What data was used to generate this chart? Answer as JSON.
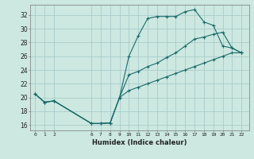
{
  "xlabel": "Humidex (Indice chaleur)",
  "bg_color": "#cce8e0",
  "grid_color": "#aacccc",
  "line_color": "#1a6b6b",
  "series": [
    {
      "x": [
        0,
        1,
        2,
        6,
        7,
        8,
        9,
        10,
        11,
        12,
        13,
        14,
        15,
        16,
        17,
        18,
        19,
        20,
        21,
        22
      ],
      "y": [
        20.5,
        19.3,
        19.5,
        16.2,
        16.2,
        16.3,
        20.0,
        26.0,
        29.0,
        31.5,
        31.8,
        31.8,
        31.8,
        32.5,
        32.8,
        31.0,
        30.5,
        27.5,
        27.2,
        26.5
      ]
    },
    {
      "x": [
        0,
        1,
        2,
        6,
        7,
        8,
        9,
        10,
        11,
        12,
        13,
        14,
        15,
        16,
        17,
        18,
        19,
        20,
        21,
        22
      ],
      "y": [
        20.5,
        19.3,
        19.5,
        16.2,
        16.2,
        16.3,
        20.0,
        23.3,
        23.8,
        24.5,
        25.0,
        25.8,
        26.5,
        27.5,
        28.5,
        28.8,
        29.2,
        29.5,
        27.2,
        26.5
      ]
    },
    {
      "x": [
        0,
        1,
        2,
        6,
        7,
        8,
        9,
        10,
        11,
        12,
        13,
        14,
        15,
        16,
        17,
        18,
        19,
        20,
        21,
        22
      ],
      "y": [
        20.5,
        19.3,
        19.5,
        16.2,
        16.2,
        16.3,
        20.0,
        21.0,
        21.5,
        22.0,
        22.5,
        23.0,
        23.5,
        24.0,
        24.5,
        25.0,
        25.5,
        26.0,
        26.5,
        26.5
      ]
    }
  ],
  "yticks": [
    16,
    18,
    20,
    22,
    24,
    26,
    28,
    30,
    32
  ],
  "xtick_labels": [
    "0",
    "1",
    "2",
    "6",
    "7",
    "8",
    "9",
    "10",
    "11",
    "12",
    "13",
    "14",
    "15",
    "16",
    "17",
    "18",
    "19",
    "20",
    "21",
    "22"
  ],
  "xtick_pos": [
    0,
    1,
    2,
    6,
    7,
    8,
    9,
    10,
    11,
    12,
    13,
    14,
    15,
    16,
    17,
    18,
    19,
    20,
    21,
    22
  ],
  "ylim": [
    15.2,
    33.5
  ],
  "xlim": [
    -0.5,
    22.8
  ]
}
